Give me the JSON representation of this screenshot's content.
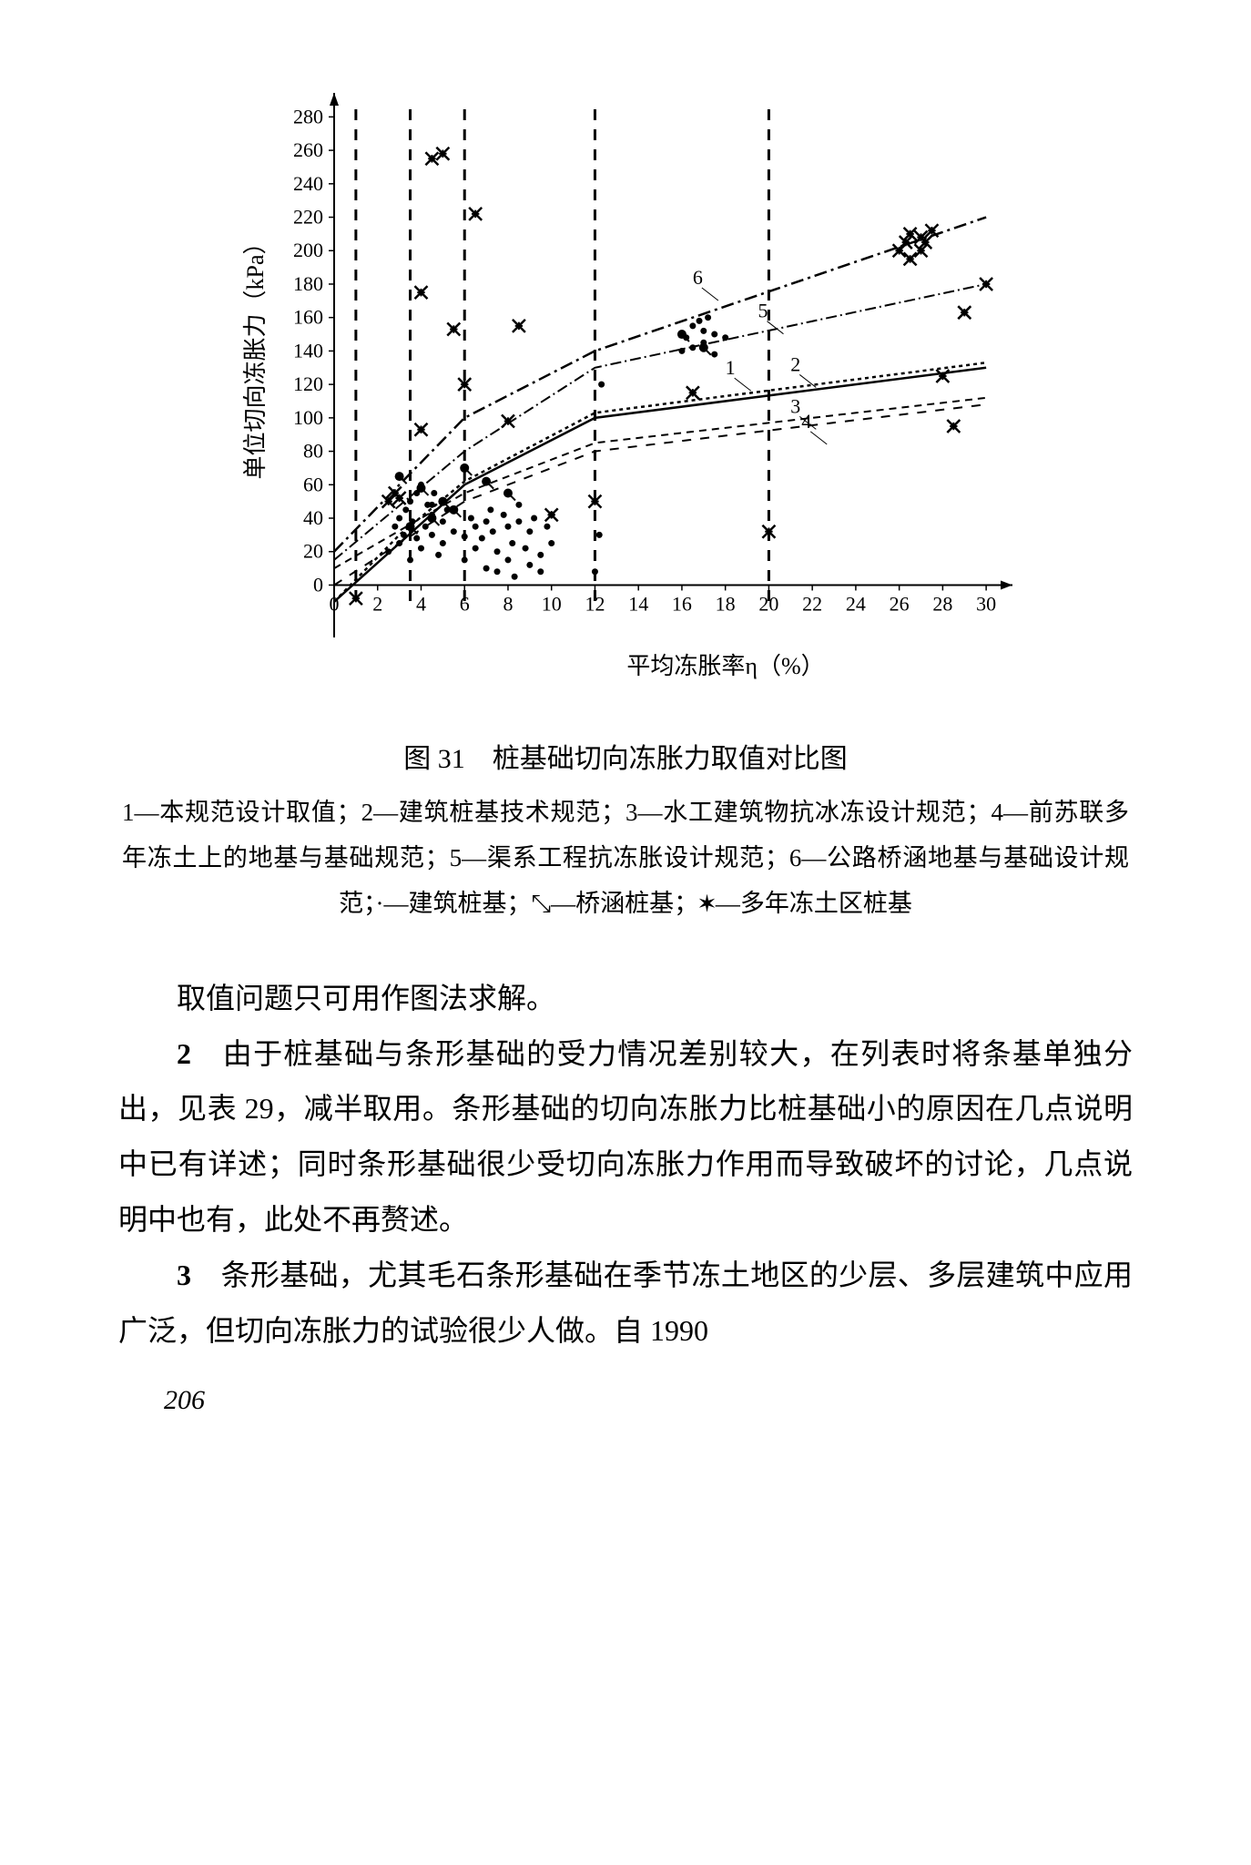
{
  "chart": {
    "type": "scatter+line",
    "title": "图 31　桩基础切向冻胀力取值对比图",
    "xlabel": "平均冻胀率η（%）",
    "ylabel": "单位切向冻胀力（kPa）",
    "xlim": [
      0,
      31
    ],
    "ylim": [
      -15,
      290
    ],
    "xticks": [
      0,
      2,
      4,
      6,
      8,
      10,
      12,
      14,
      16,
      18,
      20,
      22,
      24,
      26,
      28,
      30
    ],
    "yticks": [
      0,
      20,
      40,
      60,
      80,
      100,
      120,
      140,
      160,
      180,
      200,
      220,
      240,
      260,
      280
    ],
    "xtick_labels": [
      "0",
      "2",
      "4",
      "6",
      "8",
      "10",
      "12",
      "14",
      "16",
      "18",
      "20",
      "22",
      "24",
      "26",
      "28",
      "30"
    ],
    "ytick_labels": [
      "0",
      "20",
      "40",
      "60",
      "80",
      "100",
      "120",
      "140",
      "160",
      "180",
      "200",
      "220",
      "240",
      "260",
      "280"
    ],
    "axis_color": "#000000",
    "background_color": "#ffffff",
    "axis_width": 2,
    "label_fontsize": 26,
    "tick_fontsize": 22,
    "vertical_dashed_x": [
      1,
      3.5,
      6,
      12,
      20
    ],
    "vertical_dash_pattern": "12,10",
    "vertical_dash_width": 3,
    "lines": {
      "1": {
        "style": "solid",
        "width": 2.5,
        "points": [
          [
            0,
            -10
          ],
          [
            6,
            60
          ],
          [
            12,
            100
          ],
          [
            30,
            130
          ]
        ]
      },
      "2": {
        "style": "4,4",
        "width": 2.5,
        "points": [
          [
            0,
            -10
          ],
          [
            3,
            30
          ],
          [
            6,
            62
          ],
          [
            12,
            103
          ],
          [
            30,
            133
          ]
        ]
      },
      "3": {
        "style": "8,6",
        "width": 2,
        "points": [
          [
            0,
            10
          ],
          [
            6,
            55
          ],
          [
            12,
            85
          ],
          [
            30,
            112
          ]
        ]
      },
      "4": {
        "style": "10,10",
        "width": 2,
        "points": [
          [
            0,
            0
          ],
          [
            6,
            50
          ],
          [
            12,
            80
          ],
          [
            30,
            108
          ]
        ]
      },
      "5": {
        "style": "12,4,2,4",
        "width": 2,
        "points": [
          [
            0,
            15
          ],
          [
            6,
            80
          ],
          [
            12,
            130
          ],
          [
            30,
            180
          ]
        ]
      },
      "6": {
        "style": "14,5,3,5",
        "width": 2.5,
        "points": [
          [
            0,
            20
          ],
          [
            6,
            100
          ],
          [
            12,
            140
          ],
          [
            30,
            220
          ]
        ]
      }
    },
    "line_labels": [
      {
        "n": "1",
        "x": 18,
        "y": 126
      },
      {
        "n": "2",
        "x": 21,
        "y": 128
      },
      {
        "n": "3",
        "x": 21,
        "y": 103
      },
      {
        "n": "4",
        "x": 21.5,
        "y": 94
      },
      {
        "n": "5",
        "x": 19.5,
        "y": 160
      },
      {
        "n": "6",
        "x": 16.5,
        "y": 180
      }
    ],
    "scatter_dots": {
      "marker": "dot",
      "size": 3.5,
      "color": "#000000",
      "points": [
        [
          2.5,
          20
        ],
        [
          2.8,
          35
        ],
        [
          3,
          25
        ],
        [
          3,
          40
        ],
        [
          3.2,
          30
        ],
        [
          3.3,
          45
        ],
        [
          3.5,
          50
        ],
        [
          3.5,
          15
        ],
        [
          3.6,
          38
        ],
        [
          3.8,
          28
        ],
        [
          3.8,
          55
        ],
        [
          4,
          22
        ],
        [
          4,
          60
        ],
        [
          4.2,
          35
        ],
        [
          4.3,
          48
        ],
        [
          4.5,
          30
        ],
        [
          4.5,
          42
        ],
        [
          4.6,
          55
        ],
        [
          4.8,
          18
        ],
        [
          5,
          25
        ],
        [
          5,
          38
        ],
        [
          5.2,
          45
        ],
        [
          5.5,
          32
        ],
        [
          6,
          29
        ],
        [
          6,
          15
        ],
        [
          6.3,
          40
        ],
        [
          6.5,
          35
        ],
        [
          6.5,
          22
        ],
        [
          6.8,
          28
        ],
        [
          7,
          38
        ],
        [
          7,
          10
        ],
        [
          7.2,
          45
        ],
        [
          7.3,
          32
        ],
        [
          7.5,
          20
        ],
        [
          7.5,
          8
        ],
        [
          7.8,
          42
        ],
        [
          8,
          35
        ],
        [
          8,
          15
        ],
        [
          8.2,
          25
        ],
        [
          8.3,
          5
        ],
        [
          8.5,
          38
        ],
        [
          8.5,
          48
        ],
        [
          8.8,
          22
        ],
        [
          9,
          32
        ],
        [
          9,
          12
        ],
        [
          9.2,
          40
        ],
        [
          9.5,
          18
        ],
        [
          9.5,
          8
        ],
        [
          9.8,
          35
        ],
        [
          10,
          42
        ],
        [
          10,
          25
        ],
        [
          12,
          8
        ],
        [
          12.2,
          30
        ],
        [
          12.3,
          120
        ],
        [
          16,
          140
        ],
        [
          16.2,
          148
        ],
        [
          16.5,
          155
        ],
        [
          16.5,
          142
        ],
        [
          16.8,
          158
        ],
        [
          17,
          152
        ],
        [
          17,
          145
        ],
        [
          17.2,
          160
        ],
        [
          17.5,
          150
        ],
        [
          17.5,
          138
        ],
        [
          18,
          148
        ],
        [
          4.5,
          48
        ]
      ]
    },
    "scatter_tailed": {
      "marker": "tailed-dot",
      "size": 5,
      "tail_len": 8,
      "color": "#000000",
      "points": [
        [
          3,
          65
        ],
        [
          4,
          58
        ],
        [
          4.5,
          40
        ],
        [
          5,
          50
        ],
        [
          6,
          70
        ],
        [
          7,
          62
        ],
        [
          8,
          55
        ],
        [
          16,
          150
        ],
        [
          17,
          142
        ],
        [
          3.5,
          35
        ],
        [
          5.5,
          45
        ]
      ]
    },
    "scatter_x": {
      "marker": "x-star",
      "size": 7,
      "color": "#000000",
      "points": [
        [
          1,
          -8
        ],
        [
          2.5,
          50
        ],
        [
          2.8,
          55
        ],
        [
          3,
          52
        ],
        [
          4,
          93
        ],
        [
          4,
          175
        ],
        [
          4.5,
          255
        ],
        [
          5,
          258
        ],
        [
          5.5,
          153
        ],
        [
          6,
          120
        ],
        [
          6.5,
          222
        ],
        [
          8,
          98
        ],
        [
          8.5,
          155
        ],
        [
          10,
          42
        ],
        [
          12,
          50
        ],
        [
          16.5,
          115
        ],
        [
          20,
          32
        ],
        [
          26,
          200
        ],
        [
          26.3,
          205
        ],
        [
          26.5,
          210
        ],
        [
          26.5,
          195
        ],
        [
          27,
          208
        ],
        [
          27,
          200
        ],
        [
          27.2,
          205
        ],
        [
          27.5,
          212
        ],
        [
          28,
          125
        ],
        [
          28.5,
          95
        ],
        [
          29,
          163
        ],
        [
          30,
          180
        ]
      ]
    }
  },
  "legend": {
    "text": "1—本规范设计取值；2—建筑桩基技术规范；3—水工建筑物抗冰冻设计规范；4—前苏联多年冻土上的地基与基础规范；5—渠系工程抗冻胀设计规范；6—公路桥涵地基与基础设计规范；·—建筑桩基；⤡—桥涵桩基；✶—多年冻土区桩基"
  },
  "paragraphs": {
    "p0": "取值问题只可用作图法求解。",
    "p1": "由于桩基础与条形基础的受力情况差别较大，在列表时将条基单独分出，见表 29，减半取用。条形基础的切向冻胀力比桩基础小的原因在几点说明中已有详述；同时条形基础很少受切向冻胀力作用而导致破坏的讨论，几点说明中也有，此处不再赘述。",
    "p2": "条形基础，尤其毛石条形基础在季节冻土地区的少层、多层建筑中应用广泛，但切向冻胀力的试验很少人做。自 1990",
    "n1": "2",
    "n2": "3"
  },
  "page_number": "206"
}
